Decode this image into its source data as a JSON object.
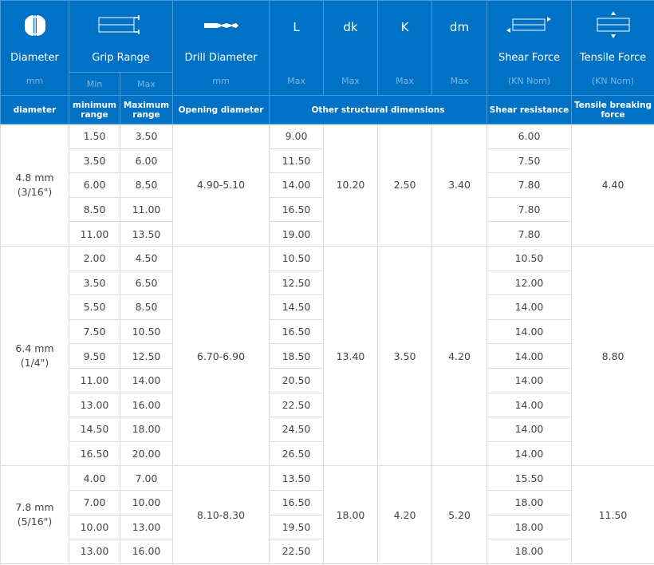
{
  "colors": {
    "header_bg": "#0072c6",
    "unit_text": "#7fb6e4",
    "border": "#dcdcdc"
  },
  "header": {
    "diameter": {
      "icon": "diameter-icon",
      "title": "Diameter",
      "unit": "mm"
    },
    "grip": {
      "icon": "grip-range-icon",
      "title": "Grip Range",
      "min": "Min",
      "max": "Max"
    },
    "drill": {
      "icon": "drill-bit-icon",
      "title": "Drill Diameter",
      "unit": "mm"
    },
    "L": {
      "title": "L",
      "unit": "Max"
    },
    "dk": {
      "title": "dk",
      "unit": "Max"
    },
    "K": {
      "title": "K",
      "unit": "Max"
    },
    "dm": {
      "title": "dm",
      "unit": "Max"
    },
    "shear": {
      "icon": "shear-force-icon",
      "title": "Shear Force",
      "unit": "(KN Nom)"
    },
    "tensile": {
      "icon": "tensile-force-icon",
      "title": "Tensile Force",
      "unit": "(KN Nom)"
    }
  },
  "subheader": {
    "diameter": "diameter",
    "min": "minimum range",
    "max": "Maximum range",
    "drill": "Opening diameter",
    "other": "Other structural dimensions",
    "shear": "Shear resistance",
    "tensile": "Tensile breaking force"
  },
  "groups": [
    {
      "diameter": "4.8 mm",
      "inch": "(3/16\")",
      "drill": "4.90-5.10",
      "dk": "10.20",
      "K": "2.50",
      "dm": "3.40",
      "tensile": "4.40",
      "rows": [
        [
          "1.50",
          "3.50",
          "9.00",
          "6.00"
        ],
        [
          "3.50",
          "6.00",
          "11.50",
          "7.50"
        ],
        [
          "6.00",
          "8.50",
          "14.00",
          "7.80"
        ],
        [
          "8.50",
          "11.00",
          "16.50",
          "7.80"
        ],
        [
          "11.00",
          "13.50",
          "19.00",
          "7.80"
        ]
      ]
    },
    {
      "diameter": "6.4 mm",
      "inch": "(1/4\")",
      "drill": "6.70-6.90",
      "dk": "13.40",
      "K": "3.50",
      "dm": "4.20",
      "tensile": "8.80",
      "rows": [
        [
          "2.00",
          "4.50",
          "10.50",
          "10.50"
        ],
        [
          "3.50",
          "6.50",
          "12.50",
          "12.00"
        ],
        [
          "5.50",
          "8.50",
          "14.50",
          "14.00"
        ],
        [
          "7.50",
          "10.50",
          "16.50",
          "14.00"
        ],
        [
          "9.50",
          "12.50",
          "18.50",
          "14.00"
        ],
        [
          "11.00",
          "14.00",
          "20.50",
          "14.00"
        ],
        [
          "13.00",
          "16.00",
          "22.50",
          "14.00"
        ],
        [
          "14.50",
          "18.00",
          "24.50",
          "14.00"
        ],
        [
          "16.50",
          "20.00",
          "26.50",
          "14.00"
        ]
      ]
    },
    {
      "diameter": "7.8 mm",
      "inch": "(5/16\")",
      "drill": "8.10-8.30",
      "dk": "18.00",
      "K": "4.20",
      "dm": "5.20",
      "tensile": "11.50",
      "rows": [
        [
          "4.00",
          "7.00",
          "13.50",
          "15.50"
        ],
        [
          "7.00",
          "10.00",
          "16.50",
          "18.00"
        ],
        [
          "10.00",
          "13.00",
          "19.50",
          "18.00"
        ],
        [
          "13.00",
          "16.00",
          "22.50",
          "18.00"
        ]
      ]
    }
  ]
}
